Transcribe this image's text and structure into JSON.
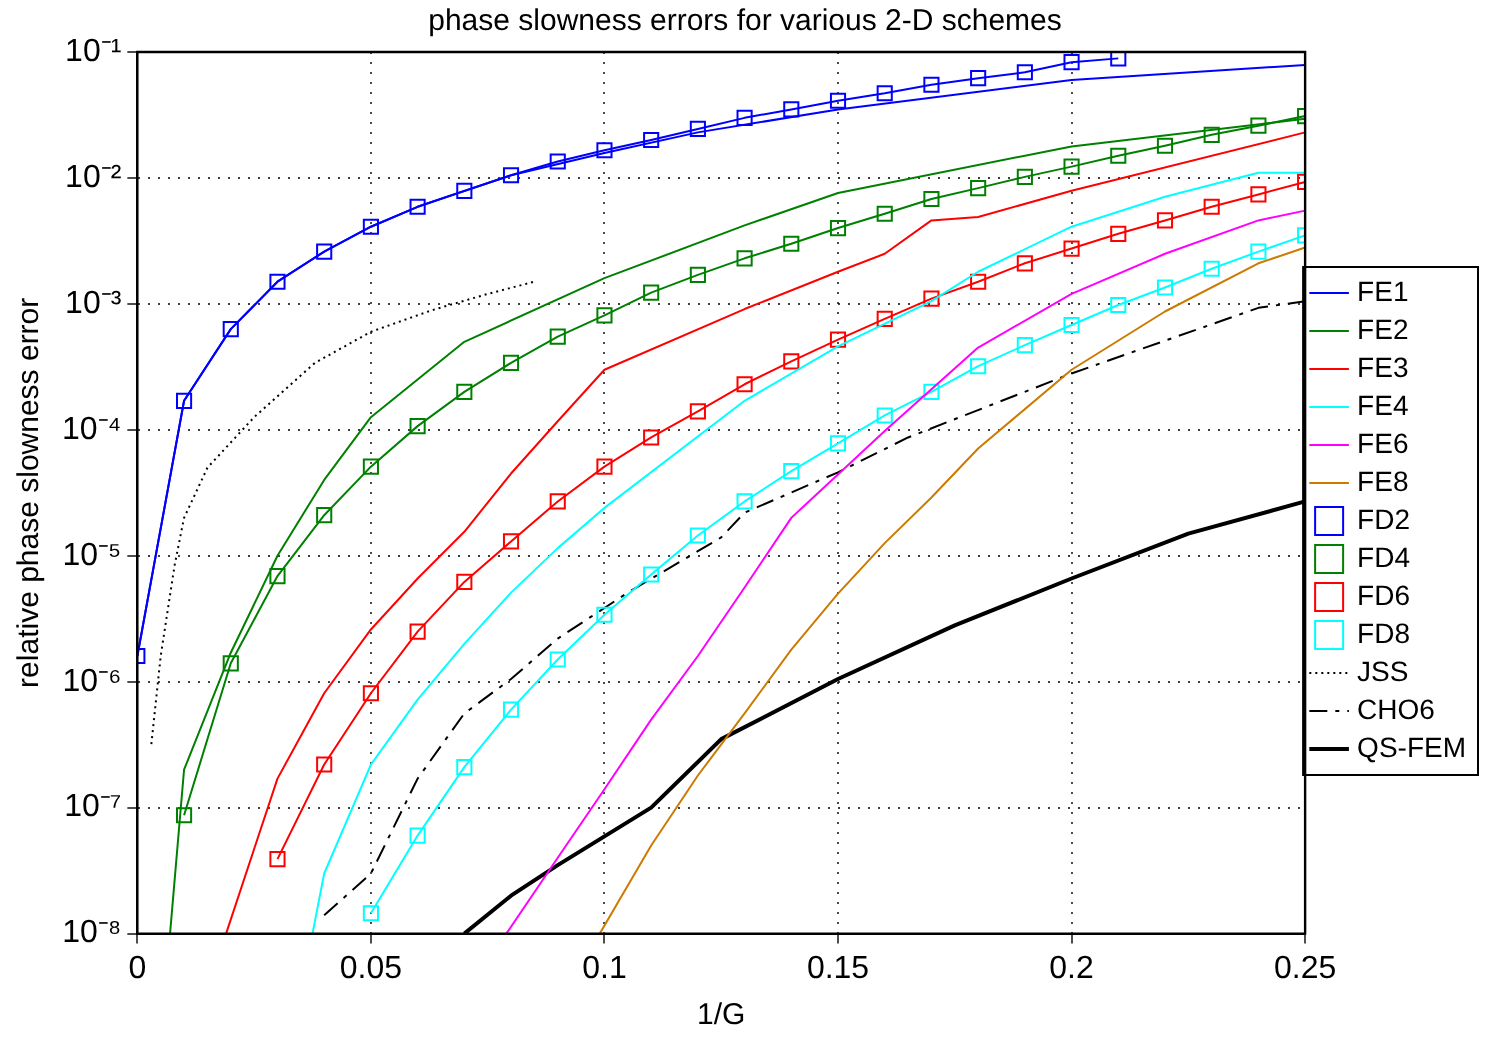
{
  "chart_data": {
    "type": "line",
    "title": "phase slowness errors for various 2-D schemes",
    "xlabel": "1/G",
    "ylabel": "relative phase slowness error",
    "log": "y",
    "grid": true,
    "legend": "right",
    "line_style": "solid",
    "xlim": [
      0,
      0.25
    ],
    "xticks": [
      0,
      0.05,
      0.1,
      0.15,
      0.2,
      0.25
    ],
    "ylim": [
      1e-08,
      0.1
    ],
    "yticks": [
      {
        "value": 1e-08,
        "label": "10⁻⁸"
      },
      {
        "value": 1e-07,
        "label": "10⁻⁷"
      },
      {
        "value": 1e-06,
        "label": "10⁻⁶"
      },
      {
        "value": 1e-05,
        "label": "10⁻⁵"
      },
      {
        "value": 0.0001,
        "label": "10⁻⁴"
      },
      {
        "value": 0.001,
        "label": "10⁻³"
      },
      {
        "value": 0.01,
        "label": "10⁻²"
      },
      {
        "value": 0.1,
        "label": "10⁻¹"
      }
    ],
    "series": [
      {
        "name": "FE1",
        "color": "#0000ff",
        "x": [
          0,
          0.01,
          0.02,
          0.03,
          0.04,
          0.05,
          0.06,
          0.08,
          0.1,
          0.12,
          0.15,
          0.2,
          0.25
        ],
        "values": [
          1.6e-06,
          0.00017,
          0.00063,
          0.0015,
          0.0026,
          0.0041,
          0.0059,
          0.0105,
          0.0158,
          0.023,
          0.035,
          0.06,
          0.079
        ]
      },
      {
        "name": "FE2",
        "color": "#008000",
        "x": [
          0.007,
          0.01,
          0.02,
          0.03,
          0.04,
          0.05,
          0.07,
          0.1,
          0.13,
          0.15,
          0.2,
          0.25
        ],
        "values": [
          1e-08,
          2e-07,
          1.7e-06,
          1e-05,
          4e-05,
          0.000126,
          0.0005,
          0.0016,
          0.0042,
          0.0076,
          0.0178,
          0.0295
        ]
      },
      {
        "name": "FE3",
        "color": "#ff0000",
        "x": [
          0.019,
          0.03,
          0.04,
          0.05,
          0.06,
          0.07,
          0.08,
          0.09,
          0.1,
          0.13,
          0.15,
          0.16,
          0.17,
          0.18,
          0.2,
          0.25
        ],
        "values": [
          1e-08,
          1.7e-07,
          8.1e-07,
          2.6e-06,
          6.6e-06,
          1.55e-05,
          4.5e-05,
          0.000117,
          0.0003,
          0.00091,
          0.0018,
          0.0025,
          0.0046,
          0.0049,
          0.0079,
          0.023
        ]
      },
      {
        "name": "FE4",
        "color": "#00ffff",
        "x": [
          0.0375,
          0.04,
          0.05,
          0.06,
          0.07,
          0.08,
          0.09,
          0.1,
          0.13,
          0.15,
          0.17,
          0.18,
          0.2,
          0.22,
          0.24,
          0.25
        ],
        "values": [
          1e-08,
          3e-08,
          2.2e-07,
          7.2e-07,
          2e-06,
          5.1e-06,
          1.15e-05,
          2.4e-05,
          0.00017,
          0.00046,
          0.00105,
          0.0018,
          0.0041,
          0.0071,
          0.011,
          0.011
        ]
      },
      {
        "name": "FE6",
        "color": "#ff00ff",
        "x": [
          0.079,
          0.09,
          0.1,
          0.11,
          0.12,
          0.13,
          0.14,
          0.16,
          0.18,
          0.2,
          0.22,
          0.24,
          0.25
        ],
        "values": [
          1e-08,
          4e-08,
          1.4e-07,
          5e-07,
          1.6e-06,
          5.6e-06,
          2e-05,
          9.8e-05,
          0.00045,
          0.0012,
          0.0025,
          0.0046,
          0.0055
        ]
      },
      {
        "name": "FE8",
        "color": "#cc7a00",
        "x": [
          0.099,
          0.11,
          0.12,
          0.13,
          0.14,
          0.15,
          0.16,
          0.17,
          0.18,
          0.2,
          0.22,
          0.24,
          0.25
        ],
        "values": [
          1e-08,
          5e-08,
          1.8e-07,
          5.6e-07,
          1.8e-06,
          5e-06,
          1.26e-05,
          2.9e-05,
          7.1e-05,
          0.0003,
          0.00087,
          0.0021,
          0.0028
        ]
      },
      {
        "name": "FD2",
        "color": "#0000ff",
        "marker": "square",
        "x": [
          0,
          0.01,
          0.02,
          0.03,
          0.04,
          0.05,
          0.06,
          0.07,
          0.08,
          0.09,
          0.1,
          0.11,
          0.12,
          0.13,
          0.14,
          0.15,
          0.16,
          0.17,
          0.18,
          0.19,
          0.2,
          0.21
        ],
        "values": [
          1.6e-06,
          0.00017,
          0.00063,
          0.0015,
          0.0026,
          0.0041,
          0.0059,
          0.0079,
          0.0105,
          0.0135,
          0.0166,
          0.02,
          0.0245,
          0.03,
          0.035,
          0.041,
          0.047,
          0.055,
          0.062,
          0.069,
          0.083,
          0.089
        ]
      },
      {
        "name": "FD4",
        "color": "#008000",
        "marker": "square",
        "x": [
          0.01,
          0.02,
          0.03,
          0.04,
          0.05,
          0.06,
          0.07,
          0.08,
          0.09,
          0.1,
          0.11,
          0.12,
          0.13,
          0.14,
          0.15,
          0.16,
          0.17,
          0.18,
          0.19,
          0.2,
          0.21,
          0.22,
          0.23,
          0.24,
          0.25
        ],
        "values": [
          8.7e-08,
          1.4e-06,
          6.9e-06,
          2.1e-05,
          5.1e-05,
          0.000107,
          0.0002,
          0.00034,
          0.00055,
          0.00081,
          0.00123,
          0.0017,
          0.0023,
          0.003,
          0.004,
          0.0052,
          0.0068,
          0.0083,
          0.0102,
          0.0123,
          0.015,
          0.018,
          0.022,
          0.026,
          0.031
        ]
      },
      {
        "name": "FD6",
        "color": "#ff0000",
        "marker": "square",
        "x": [
          0.03,
          0.04,
          0.05,
          0.06,
          0.07,
          0.08,
          0.09,
          0.1,
          0.11,
          0.12,
          0.13,
          0.14,
          0.15,
          0.16,
          0.17,
          0.18,
          0.19,
          0.2,
          0.21,
          0.22,
          0.23,
          0.24,
          0.25
        ],
        "values": [
          3.9e-08,
          2.2e-07,
          8.1e-07,
          2.5e-06,
          6.2e-06,
          1.3e-05,
          2.7e-05,
          5.1e-05,
          8.7e-05,
          0.00014,
          0.00023,
          0.00035,
          0.00052,
          0.00076,
          0.0011,
          0.0015,
          0.0021,
          0.00275,
          0.0036,
          0.0046,
          0.0059,
          0.0074,
          0.0093
        ]
      },
      {
        "name": "FD8",
        "color": "#00ffff",
        "marker": "square",
        "x": [
          0.05,
          0.06,
          0.07,
          0.08,
          0.09,
          0.1,
          0.11,
          0.12,
          0.13,
          0.14,
          0.15,
          0.16,
          0.17,
          0.18,
          0.19,
          0.2,
          0.21,
          0.22,
          0.23,
          0.24,
          0.25
        ],
        "values": [
          1.45e-08,
          6e-08,
          2.1e-07,
          6e-07,
          1.5e-06,
          3.4e-06,
          7.1e-06,
          1.45e-05,
          2.7e-05,
          4.7e-05,
          7.8e-05,
          0.00013,
          0.0002,
          0.00032,
          0.00047,
          0.00068,
          0.00098,
          0.00135,
          0.0019,
          0.0026,
          0.0035
        ]
      },
      {
        "name": "JSS",
        "color": "#000000",
        "line_style": "dotted",
        "x": [
          0.003,
          0.005,
          0.008,
          0.01,
          0.015,
          0.025,
          0.038,
          0.05,
          0.063,
          0.075,
          0.085
        ],
        "values": [
          3.2e-07,
          1.6e-06,
          8.5e-06,
          2e-05,
          5e-05,
          0.000126,
          0.00034,
          0.0006,
          0.00089,
          0.0012,
          0.0015
        ]
      },
      {
        "name": "CHO6",
        "color": "#000000",
        "line_style": "dashed",
        "x": [
          0.04,
          0.05,
          0.06,
          0.07,
          0.08,
          0.09,
          0.105,
          0.125,
          0.13,
          0.15,
          0.165,
          0.2,
          0.24,
          0.25
        ],
        "values": [
          1.4e-08,
          3e-08,
          1.7e-07,
          5.6e-07,
          1.05e-06,
          2.2e-06,
          5.1e-06,
          1.4e-05,
          2.2e-05,
          4.6e-05,
          8.7e-05,
          0.00028,
          0.00093,
          0.00105
        ]
      },
      {
        "name": "QS-FEM",
        "color": "#000000",
        "x": [
          0.07,
          0.08,
          0.09,
          0.11,
          0.125,
          0.15,
          0.175,
          0.2,
          0.225,
          0.25
        ],
        "values": [
          1e-08,
          2e-08,
          3.5e-08,
          1e-07,
          3.5e-07,
          1.05e-06,
          2.8e-06,
          6.6e-06,
          1.5e-05,
          2.7e-05
        ]
      }
    ]
  }
}
